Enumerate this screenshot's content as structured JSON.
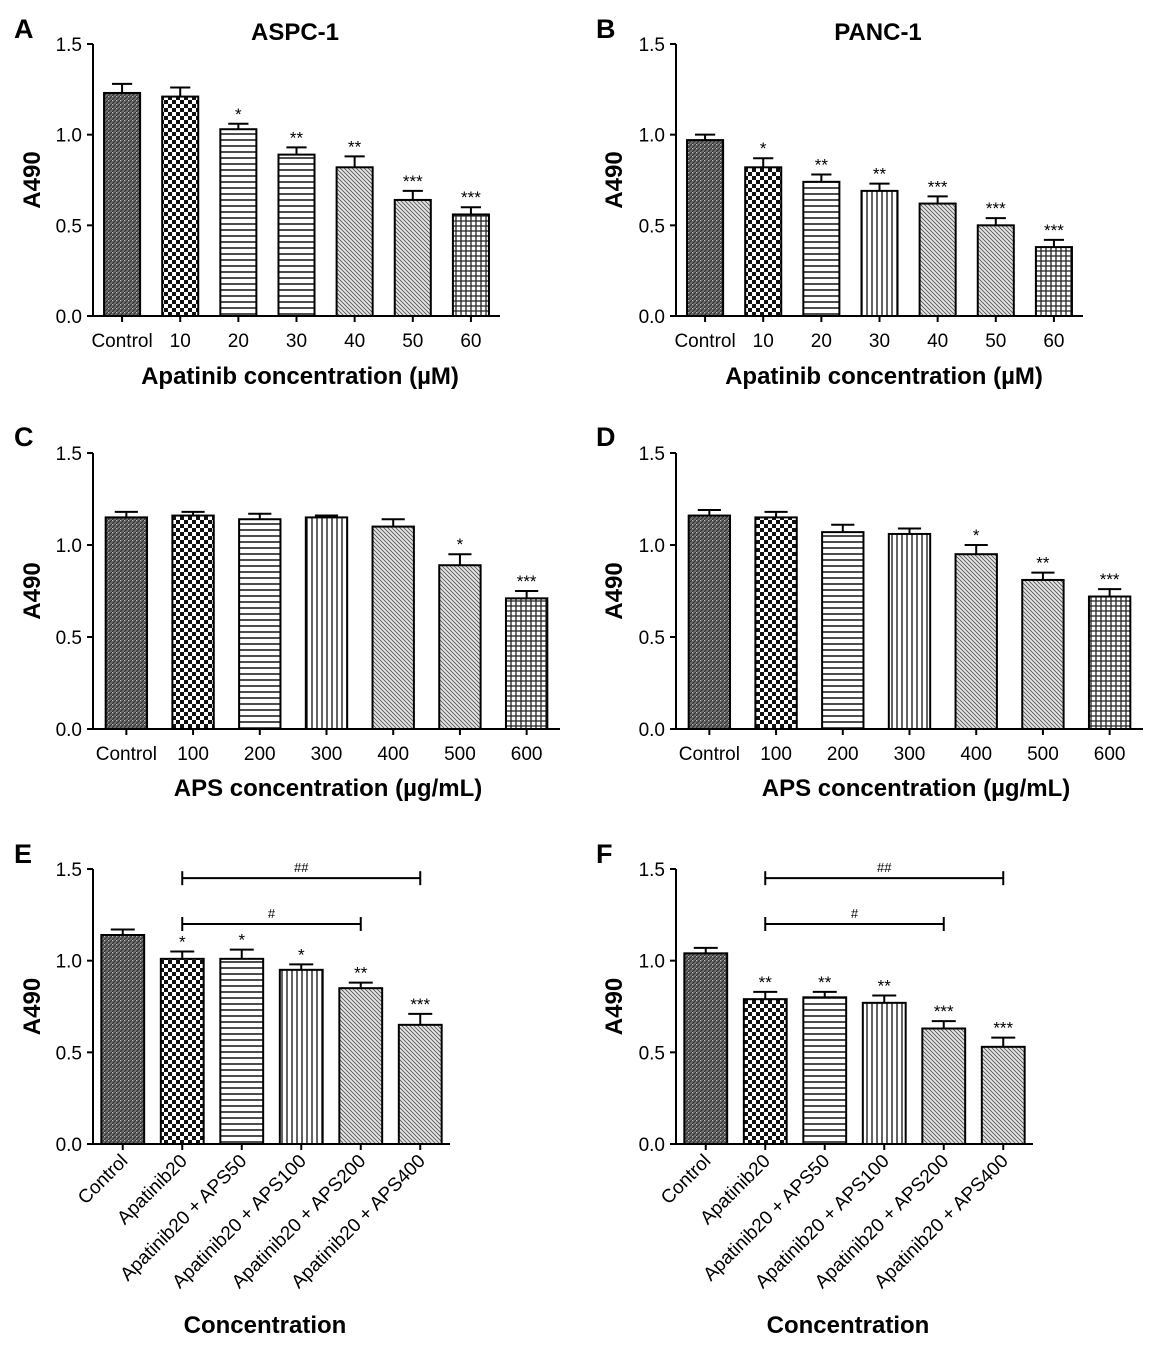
{
  "chart_data": [
    {
      "type": "bar",
      "panel": "A",
      "title": "ASPC-1",
      "xlabel": "Apatinib concentration (µM)",
      "ylabel": "A490",
      "ylim": [
        0,
        1.5
      ],
      "yticks": [
        "0.0",
        "0.5",
        "1.0",
        "1.5"
      ],
      "categories": [
        "Control",
        "10",
        "20",
        "30",
        "40",
        "50",
        "60"
      ],
      "values": [
        1.23,
        1.21,
        1.03,
        0.89,
        0.82,
        0.64,
        0.56
      ],
      "errors": [
        0.05,
        0.05,
        0.03,
        0.04,
        0.06,
        0.05,
        0.04
      ],
      "significance": [
        "",
        "",
        "*",
        "**",
        "**",
        "***",
        "***"
      ],
      "patterns": [
        "dense",
        "check",
        "hlines",
        "hlines",
        "diag",
        "diag",
        "grid"
      ],
      "brackets": []
    },
    {
      "type": "bar",
      "panel": "B",
      "title": "PANC-1",
      "xlabel": "Apatinib concentration (µM)",
      "ylabel": "A490",
      "ylim": [
        0,
        1.5
      ],
      "yticks": [
        "0.0",
        "0.5",
        "1.0",
        "1.5"
      ],
      "categories": [
        "Control",
        "10",
        "20",
        "30",
        "40",
        "50",
        "60"
      ],
      "values": [
        0.97,
        0.82,
        0.74,
        0.69,
        0.62,
        0.5,
        0.38
      ],
      "errors": [
        0.03,
        0.05,
        0.04,
        0.04,
        0.04,
        0.04,
        0.04
      ],
      "significance": [
        "",
        "*",
        "**",
        "**",
        "***",
        "***",
        "***"
      ],
      "patterns": [
        "dense",
        "check",
        "hlines",
        "vlines",
        "diag",
        "diag",
        "grid"
      ],
      "brackets": []
    },
    {
      "type": "bar",
      "panel": "C",
      "title": "",
      "xlabel": "APS concentration (µg/mL)",
      "ylabel": "A490",
      "ylim": [
        0,
        1.5
      ],
      "yticks": [
        "0.0",
        "0.5",
        "1.0",
        "1.5"
      ],
      "categories": [
        "Control",
        "100",
        "200",
        "300",
        "400",
        "500",
        "600"
      ],
      "values": [
        1.15,
        1.16,
        1.14,
        1.15,
        1.1,
        0.89,
        0.71
      ],
      "errors": [
        0.03,
        0.02,
        0.03,
        0.01,
        0.04,
        0.06,
        0.04
      ],
      "significance": [
        "",
        "",
        "",
        "",
        "",
        "*",
        "***"
      ],
      "patterns": [
        "dense",
        "check",
        "hlines",
        "vlines",
        "diag",
        "diag",
        "grid"
      ],
      "brackets": []
    },
    {
      "type": "bar",
      "panel": "D",
      "title": "",
      "xlabel": "APS concentration (µg/mL)",
      "ylabel": "A490",
      "ylim": [
        0,
        1.5
      ],
      "yticks": [
        "0.0",
        "0.5",
        "1.0",
        "1.5"
      ],
      "categories": [
        "Control",
        "100",
        "200",
        "300",
        "400",
        "500",
        "600"
      ],
      "values": [
        1.16,
        1.15,
        1.07,
        1.06,
        0.95,
        0.81,
        0.72
      ],
      "errors": [
        0.03,
        0.03,
        0.04,
        0.03,
        0.05,
        0.04,
        0.04
      ],
      "significance": [
        "",
        "",
        "",
        "",
        "*",
        "**",
        "***"
      ],
      "patterns": [
        "dense",
        "check",
        "hlines",
        "vlines",
        "diag",
        "diag",
        "grid"
      ],
      "brackets": []
    },
    {
      "type": "bar",
      "panel": "E",
      "title": "",
      "xlabel": "Concentration",
      "ylabel": "A490",
      "ylim": [
        0,
        1.5
      ],
      "yticks": [
        "0.0",
        "0.5",
        "1.0",
        "1.5"
      ],
      "categories": [
        "Control",
        "Apatinib20",
        "Apatinib20 + APS50",
        "Apatinib20 + APS100",
        "Apatinib20 + APS200",
        "Apatinib20 + APS400"
      ],
      "values": [
        1.14,
        1.01,
        1.01,
        0.95,
        0.85,
        0.65
      ],
      "errors": [
        0.03,
        0.04,
        0.05,
        0.03,
        0.03,
        0.06
      ],
      "significance": [
        "",
        "*",
        "*",
        "*",
        "**",
        "***"
      ],
      "patterns": [
        "dense",
        "check",
        "hlines",
        "vlines",
        "diag",
        "diag"
      ],
      "brackets": [
        {
          "label": "##",
          "from": 1,
          "to": 5,
          "y": 1.45
        },
        {
          "label": "#",
          "from": 1,
          "to": 4,
          "y": 1.2
        }
      ]
    },
    {
      "type": "bar",
      "panel": "F",
      "title": "",
      "xlabel": "Concentration",
      "ylabel": "A490",
      "ylim": [
        0,
        1.5
      ],
      "yticks": [
        "0.0",
        "0.5",
        "1.0",
        "1.5"
      ],
      "categories": [
        "Control",
        "Apatinib20",
        "Apatinib20 + APS50",
        "Apatinib20 + APS100",
        "Apatinib20 + APS200",
        "Apatinib20 + APS400"
      ],
      "values": [
        1.04,
        0.79,
        0.8,
        0.77,
        0.63,
        0.53
      ],
      "errors": [
        0.03,
        0.04,
        0.03,
        0.04,
        0.04,
        0.05
      ],
      "significance": [
        "",
        "**",
        "**",
        "**",
        "***",
        "***"
      ],
      "patterns": [
        "dense",
        "check",
        "hlines",
        "vlines",
        "diag",
        "diag"
      ],
      "brackets": [
        {
          "label": "##",
          "from": 1,
          "to": 5,
          "y": 1.45
        },
        {
          "label": "#",
          "from": 1,
          "to": 4,
          "y": 1.2
        }
      ]
    }
  ]
}
